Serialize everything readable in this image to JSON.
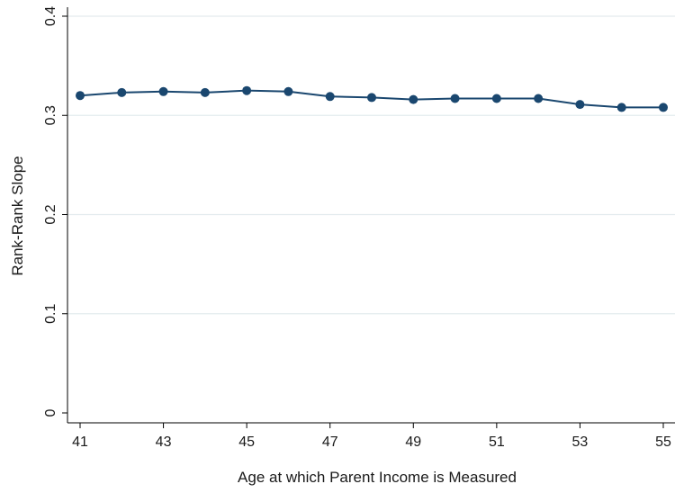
{
  "chart_data": {
    "type": "line",
    "title": "",
    "xlabel": "Age at which Parent Income is Measured",
    "ylabel": "Rank-Rank Slope",
    "x": [
      41,
      42,
      43,
      44,
      45,
      46,
      47,
      48,
      49,
      50,
      51,
      52,
      53,
      54,
      55
    ],
    "series": [
      {
        "values": [
          0.32,
          0.323,
          0.324,
          0.323,
          0.325,
          0.324,
          0.319,
          0.318,
          0.316,
          0.317,
          0.317,
          0.317,
          0.311,
          0.308,
          0.308
        ]
      }
    ],
    "xlim": [
      41,
      55
    ],
    "ylim": [
      0,
      0.4
    ],
    "xticks": [
      41,
      43,
      45,
      47,
      49,
      51,
      53,
      55
    ],
    "xtick_labels": [
      "41",
      "43",
      "45",
      "47",
      "49",
      "51",
      "53",
      "55"
    ],
    "yticks": [
      0,
      0.1,
      0.2,
      0.3,
      0.4
    ],
    "ytick_labels": [
      "0",
      "0.1",
      "0.2",
      "0.3",
      "0.4"
    ],
    "grid": true,
    "legend": "none",
    "colors": {
      "series": "#1a476f",
      "grid": "#e3ebee",
      "axis": "#000000"
    }
  }
}
